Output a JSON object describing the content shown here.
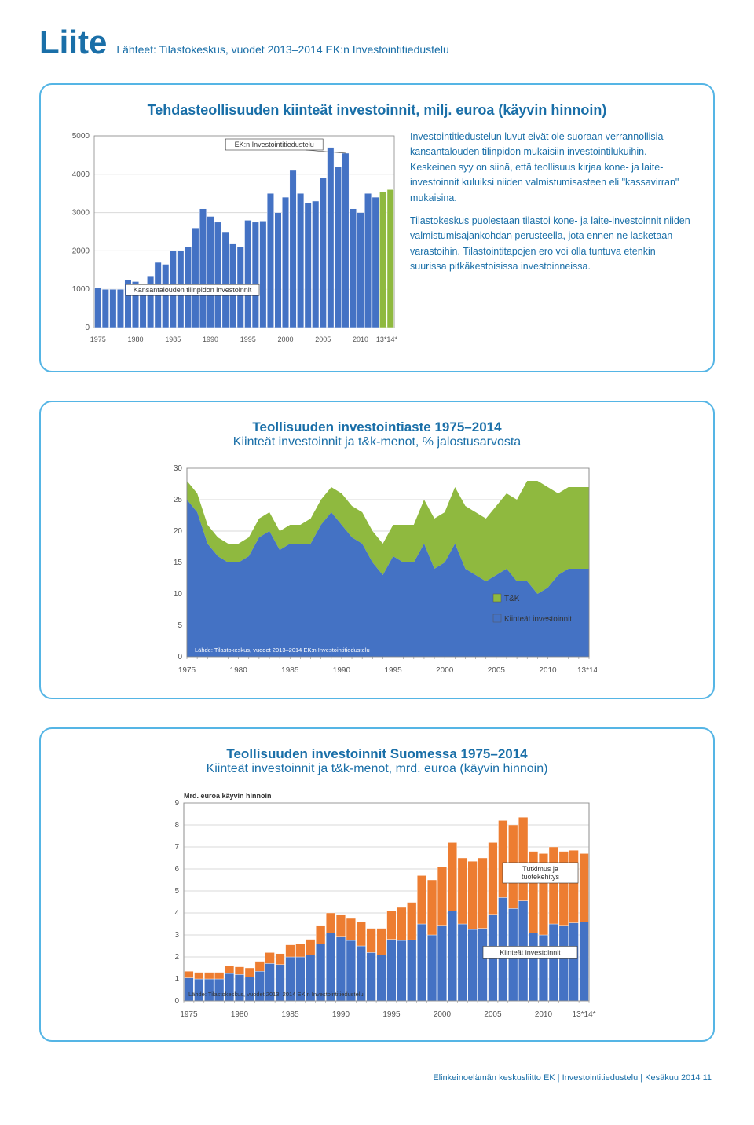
{
  "header": {
    "title": "Liite",
    "sources": "Lähteet: Tilastokeskus, vuodet 2013–2014 EK:n Investointitiedustelu"
  },
  "chart1": {
    "title": "Tehdasteollisuuden kiinteät investoinnit, milj. euroa (käyvin hinnoin)",
    "type": "bar",
    "annotation1": "EK:n Investointitiedustelu",
    "annotation2": "Kansantalouden tilinpidon investoinnit",
    "y_ticks": [
      0,
      1000,
      2000,
      3000,
      4000,
      5000
    ],
    "x_labels": [
      "1975",
      "1980",
      "1985",
      "1990",
      "1995",
      "2000",
      "2005",
      "2010",
      "13*14*"
    ],
    "bars_main": [
      1050,
      1000,
      1000,
      1000,
      1250,
      1200,
      1100,
      1350,
      1700,
      1650,
      2000,
      2000,
      2100,
      2600,
      3100,
      2900,
      2750,
      2500,
      2200,
      2100,
      2800,
      2750,
      2780,
      3500,
      3000,
      3400,
      4100,
      3500,
      3250,
      3300,
      3900,
      4700,
      4200,
      4550,
      3100,
      3000,
      3500,
      3400
    ],
    "bars_green": [
      3550,
      3600
    ],
    "bar_color": "#4472c4",
    "bar_green": "#8fb93f",
    "grid_color": "#d9d9d9",
    "axis_color": "#888",
    "label_fontsize": 10,
    "desc_p1": "Investointitiedustelun luvut eivät ole suoraan verrannollisia kansantalouden tilinpidon mukaisiin investointilukuihin. Keskeinen syy on siinä, että teollisuus kirjaa kone- ja laite-investoinnit kuluiksi niiden valmistumisasteen eli \"kassavirran\" mukaisina.",
    "desc_p2": "Tilastokeskus puolestaan tilastoi kone- ja laite-investoinnit niiden valmistumisajankohdan perusteella, jota ennen ne lasketaan varastoihin. Tilastointitapojen ero voi olla tuntuva etenkin suurissa pitkäkestoisissa investoinneissa."
  },
  "chart2": {
    "title_line1": "Teollisuuden investointiaste 1975–2014",
    "title_line2": "Kiinteät investoinnit ja t&k-menot, % jalostusarvosta",
    "type": "area",
    "y_ticks": [
      0,
      5,
      10,
      15,
      20,
      25,
      30
    ],
    "x_labels": [
      "1975",
      "1980",
      "1985",
      "1990",
      "1995",
      "2000",
      "2005",
      "2010",
      "13*14*"
    ],
    "legend_tk": "T&K",
    "legend_kiinteat": "Kiinteät investoinnit",
    "source_note": "Lähde: Tilastokeskus, vuodet 2013–2014  EK:n Investointitiedustelu",
    "tk_color": "#8fb93f",
    "kiinteat_color": "#4472c4",
    "grid_color": "#d9d9d9",
    "series_kiinteat": [
      25,
      23,
      18,
      16,
      15,
      15,
      16,
      19,
      20,
      17,
      18,
      18,
      18,
      21,
      23,
      21,
      19,
      18,
      15,
      13,
      16,
      15,
      15,
      18,
      14,
      15,
      18,
      14,
      13,
      12,
      13,
      14,
      12,
      12,
      10,
      11,
      13,
      14,
      14,
      14
    ],
    "series_total": [
      28,
      26,
      21,
      19,
      18,
      18,
      19,
      22,
      23,
      20,
      21,
      21,
      22,
      25,
      27,
      26,
      24,
      23,
      20,
      18,
      21,
      21,
      21,
      25,
      22,
      23,
      27,
      24,
      23,
      22,
      24,
      26,
      25,
      28,
      28,
      27,
      26,
      27,
      27,
      27
    ]
  },
  "chart3": {
    "title_line1": "Teollisuuden investoinnit Suomessa 1975–2014",
    "title_line2": "Kiinteät investoinnit ja t&k-menot, mrd. euroa (käyvin hinnoin)",
    "type": "stacked-bar",
    "y_label": "Mrd. euroa käyvin hinnoin",
    "y_ticks": [
      0,
      1,
      2,
      3,
      4,
      5,
      6,
      7,
      8,
      9
    ],
    "x_labels": [
      "1975",
      "1980",
      "1985",
      "1990",
      "1995",
      "2000",
      "2005",
      "2010",
      "13*14*"
    ],
    "legend_tutkimus": "Tutkimus ja tuotekehitys",
    "legend_kiinteat": "Kiinteät investoinnit",
    "source_note": "Lähde: Tilastokeskus, vuodet 2013–2014 EK:n Investointitiedustelu",
    "kiinteat_color": "#4472c4",
    "tutkimus_color": "#ed7d31",
    "kiinteat": [
      1.05,
      1.0,
      1.0,
      1.0,
      1.25,
      1.2,
      1.1,
      1.35,
      1.7,
      1.65,
      2.0,
      2.0,
      2.1,
      2.6,
      3.1,
      2.9,
      2.75,
      2.5,
      2.2,
      2.1,
      2.8,
      2.75,
      2.78,
      3.5,
      3.0,
      3.4,
      4.1,
      3.5,
      3.25,
      3.3,
      3.9,
      4.7,
      4.2,
      4.55,
      3.1,
      3.0,
      3.5,
      3.4,
      3.55,
      3.6
    ],
    "tutkimus": [
      0.3,
      0.3,
      0.3,
      0.3,
      0.35,
      0.35,
      0.4,
      0.45,
      0.5,
      0.5,
      0.55,
      0.6,
      0.7,
      0.8,
      0.9,
      1.0,
      1.0,
      1.1,
      1.1,
      1.2,
      1.3,
      1.5,
      1.7,
      2.2,
      2.5,
      2.7,
      3.1,
      3.0,
      3.1,
      3.2,
      3.3,
      3.5,
      3.8,
      3.8,
      3.7,
      3.7,
      3.5,
      3.4,
      3.3,
      3.1
    ]
  },
  "footer": "Elinkeinoelämän keskusliitto EK  |  Investointitiedustelu  |  Kesäkuu 2014   11"
}
